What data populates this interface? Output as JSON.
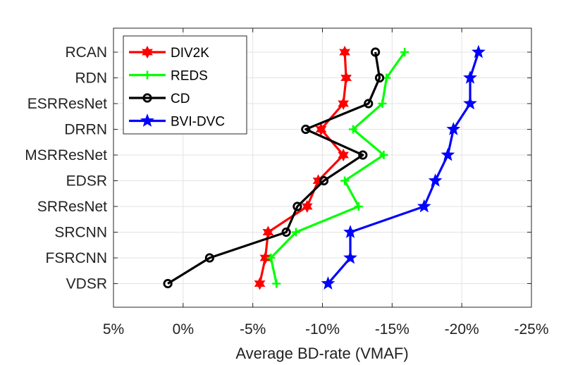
{
  "chart_data": {
    "type": "line",
    "orientation": "horizontal",
    "title": "",
    "xlabel": "Average BD-rate (VMAF)",
    "ylabel": "",
    "x_direction": "reversed",
    "xlim": [
      5,
      -25
    ],
    "x_ticks": [
      5,
      0,
      -5,
      -10,
      -15,
      -20,
      -25
    ],
    "x_tick_labels": [
      "5%",
      "0%",
      "-5%",
      "-10%",
      "-15%",
      "-20%",
      "-25%"
    ],
    "grid": true,
    "legend_position": "top-left",
    "categories": [
      "RCAN",
      "RDN",
      "ESRResNet",
      "DRRN",
      "MSRResNet",
      "EDSR",
      "SRResNet",
      "SRCNN",
      "FSRCNN",
      "VDSR"
    ],
    "series": [
      {
        "name": "DIV2K",
        "color": "#ff0000",
        "marker": "hexagram",
        "values": [
          -11.6,
          -11.7,
          -11.5,
          -9.9,
          -11.5,
          -9.7,
          -8.9,
          -6.1,
          -5.9,
          -5.5
        ]
      },
      {
        "name": "REDS",
        "color": "#00ff00",
        "marker": "plus",
        "values": [
          -15.9,
          -14.6,
          -14.3,
          -12.2,
          -14.4,
          -11.6,
          -12.6,
          -8.1,
          -6.3,
          -6.7
        ]
      },
      {
        "name": "CD",
        "color": "#000000",
        "marker": "circle",
        "values": [
          -13.8,
          -14.1,
          -13.3,
          -8.8,
          -12.9,
          -10.1,
          -8.2,
          -7.4,
          -1.9,
          1.1
        ]
      },
      {
        "name": "BVI-DVC",
        "color": "#0000ff",
        "marker": "pentagram",
        "values": [
          -21.2,
          -20.6,
          -20.6,
          -19.4,
          -19.0,
          -18.1,
          -17.3,
          -12.0,
          -12.0,
          -10.4
        ]
      }
    ]
  }
}
